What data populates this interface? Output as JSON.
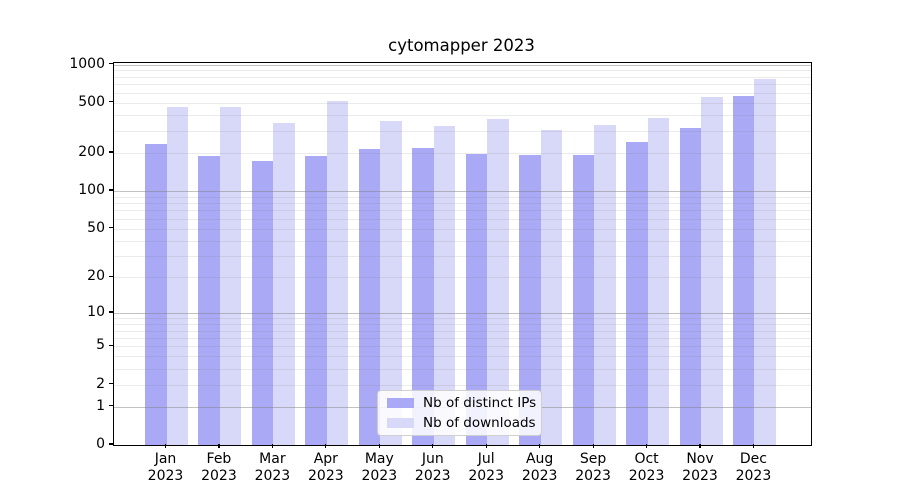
{
  "chart_data": {
    "type": "bar",
    "title": "cytomapper 2023",
    "categories": [
      "Jan",
      "Feb",
      "Mar",
      "Apr",
      "May",
      "Jun",
      "Jul",
      "Aug",
      "Sep",
      "Oct",
      "Nov",
      "Dec"
    ],
    "category_year": "2023",
    "series": [
      {
        "name": "Nb of distinct IPs",
        "color": "#a9a9f6",
        "values": [
          235,
          189,
          173,
          189,
          214,
          219,
          197,
          193,
          192,
          246,
          314,
          565
        ]
      },
      {
        "name": "Nb of downloads",
        "color": "#d8d8f8",
        "values": [
          463,
          463,
          348,
          516,
          359,
          328,
          370,
          304,
          334,
          381,
          555,
          774
        ]
      }
    ],
    "y_scale": "log1p",
    "y_tick_labels": [
      "1000",
      "500",
      "200",
      "100",
      "50",
      "20",
      "10",
      "5",
      "2",
      "1",
      "0"
    ],
    "ylim": [
      0,
      1024
    ],
    "grid": "major at powers of 10, minor at 2-9 multiples, drawn over bars",
    "legend_position": "lower center inside axes"
  }
}
